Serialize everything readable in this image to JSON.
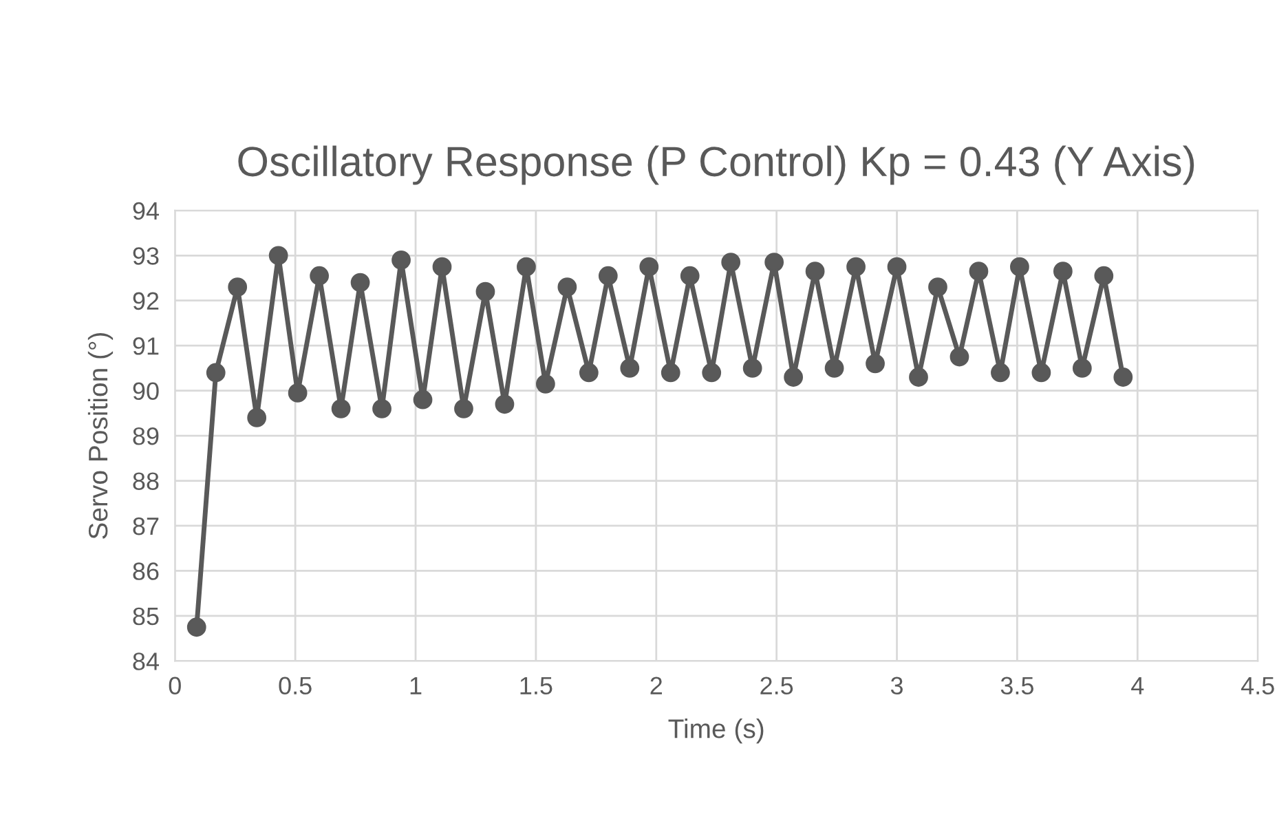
{
  "chart_data": {
    "type": "line",
    "marker": "circle",
    "line_style": "solid",
    "title": "Oscillatory Response (P Control) Kp = 0.43 (Y Axis)",
    "xlabel": "Time (s)",
    "ylabel": "Servo Position (°)",
    "series": [
      {
        "color": "#595959",
        "x": [
          0.09,
          0.17,
          0.26,
          0.34,
          0.43,
          0.51,
          0.6,
          0.69,
          0.77,
          0.86,
          0.94,
          1.03,
          1.11,
          1.2,
          1.29,
          1.37,
          1.46,
          1.54,
          1.63,
          1.72,
          1.8,
          1.89,
          1.97,
          2.06,
          2.14,
          2.23,
          2.31,
          2.4,
          2.49,
          2.57,
          2.66,
          2.74,
          2.83,
          2.91,
          3.0,
          3.09,
          3.17,
          3.26,
          3.34,
          3.43,
          3.51,
          3.6,
          3.69,
          3.77,
          3.86,
          3.94
        ],
        "values": [
          84.75,
          90.4,
          92.3,
          89.4,
          93.0,
          89.95,
          92.55,
          89.6,
          92.4,
          89.6,
          92.9,
          89.8,
          92.75,
          89.6,
          92.2,
          89.7,
          92.75,
          90.15,
          92.3,
          90.4,
          92.55,
          90.5,
          92.75,
          90.4,
          92.55,
          90.4,
          92.85,
          90.5,
          92.85,
          90.3,
          92.65,
          90.5,
          92.75,
          90.6,
          92.75,
          90.3,
          92.3,
          90.75,
          92.65,
          90.4,
          92.75,
          90.4,
          92.65,
          90.5,
          92.55,
          90.3
        ]
      }
    ],
    "xlim": [
      0,
      4.5
    ],
    "xticks": [
      0,
      0.5,
      1,
      1.5,
      2,
      2.5,
      3,
      3.5,
      4,
      4.5
    ],
    "ylim": [
      84,
      94
    ],
    "yticks": [
      84,
      85,
      86,
      87,
      88,
      89,
      90,
      91,
      92,
      93,
      94
    ],
    "grid": true,
    "legend": false
  }
}
